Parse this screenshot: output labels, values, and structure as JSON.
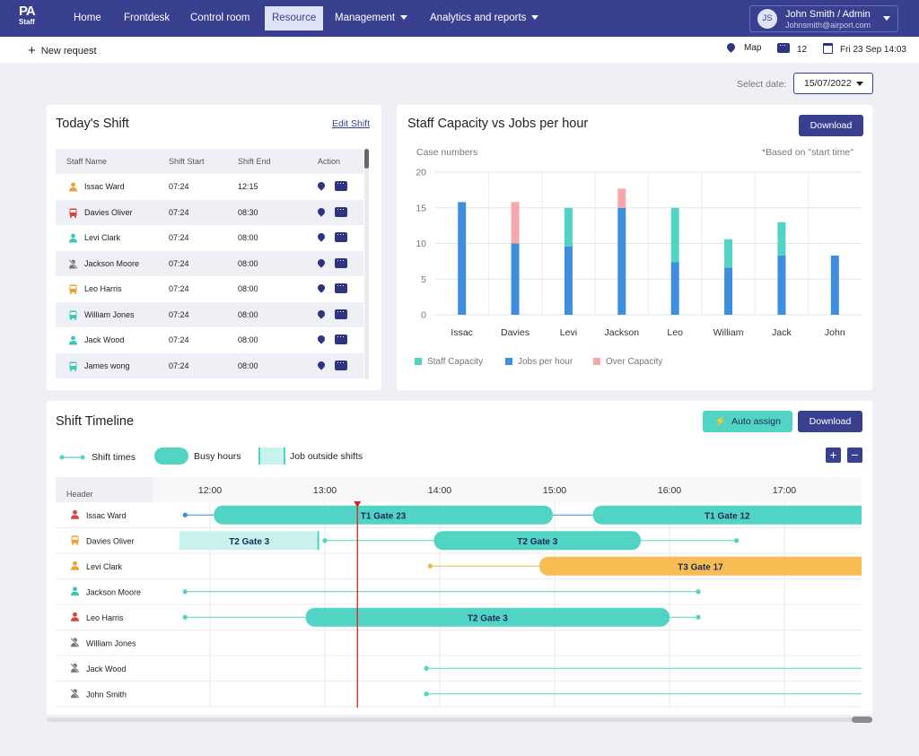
{
  "brand": {
    "line1": "PA",
    "line2": "Staff"
  },
  "nav": {
    "items": [
      {
        "label": "Home"
      },
      {
        "label": "Frontdesk"
      },
      {
        "label": "Control room"
      },
      {
        "label": "Resource",
        "active": true
      },
      {
        "label": "Management",
        "dropdown": true
      },
      {
        "label": "Analytics and reports",
        "dropdown": true
      }
    ]
  },
  "user": {
    "initials": "JS",
    "name": "John Smith / Admin",
    "email": "Johnsmith@airport.com"
  },
  "subbar": {
    "new_request": "New request",
    "map": "Map",
    "messages": "12",
    "datetime": "Fri 23 Sep 14:03"
  },
  "date_selector": {
    "label": "Select date:",
    "value": "15/07/2022"
  },
  "shift_card": {
    "title": "Today's Shift",
    "edit_link": "Edit Shift",
    "columns": [
      "Staff Name",
      "Shift Start",
      "Shift End",
      "Action"
    ],
    "rows": [
      {
        "name": "Issac Ward",
        "start": "07:24",
        "end": "12:15",
        "icon": "person-icon",
        "color": "#f0a030"
      },
      {
        "name": "Davies Oliver",
        "start": "07:24",
        "end": "08:30",
        "icon": "bus-icon",
        "color": "#e0413a"
      },
      {
        "name": "Levi Clark",
        "start": "07:24",
        "end": "08:00",
        "icon": "person-icon",
        "color": "#3cc7b7"
      },
      {
        "name": "Jackson Moore",
        "start": "07:24",
        "end": "08:00",
        "icon": "person-off-icon",
        "color": "#777777"
      },
      {
        "name": "Leo Harris",
        "start": "07:24",
        "end": "08:00",
        "icon": "bus-icon",
        "color": "#f0a030"
      },
      {
        "name": "William Jones",
        "start": "07:24",
        "end": "08:00",
        "icon": "bus-icon",
        "color": "#3cc7b7"
      },
      {
        "name": "Jack Wood",
        "start": "07:24",
        "end": "08:00",
        "icon": "person-icon",
        "color": "#3cc7b7"
      },
      {
        "name": "James wong",
        "start": "07:24",
        "end": "08:00",
        "icon": "bus-icon",
        "color": "#3cc7b7"
      }
    ]
  },
  "capacity_card": {
    "title": "Staff Capacity vs Jobs per hour",
    "download": "Download",
    "note": "*Based on \"start time\""
  },
  "chart_data": {
    "type": "bar",
    "title": "Staff Capacity vs Jobs per hour",
    "ylabel": "Case numbers",
    "categories": [
      "Issac",
      "Davies",
      "Levi",
      "Jackson",
      "Leo",
      "William",
      "Jack",
      "John"
    ],
    "series": [
      {
        "name": "Staff Capacity",
        "color": "#52d4c4",
        "values": [
          0,
          0,
          5.4,
          0,
          7.6,
          4,
          4.7,
          0
        ]
      },
      {
        "name": "Jobs per hour",
        "color": "#3e8ee0",
        "values": [
          15.8,
          10,
          9.6,
          15,
          7.4,
          6.6,
          8.3,
          8.3
        ]
      },
      {
        "name": "Over Capacity",
        "color": "#f5a9ab",
        "values": [
          0,
          5.8,
          0,
          2.7,
          0,
          0,
          0,
          0
        ]
      }
    ],
    "yticks": [
      0,
      5,
      10,
      15,
      20
    ],
    "ylim": [
      0,
      20
    ],
    "grid": true,
    "legend": "bottom"
  },
  "timeline_card": {
    "title": "Shift Timeline",
    "auto_assign": "Auto assign",
    "download": "Download",
    "legend": {
      "shift_times": "Shift times",
      "busy_hours": "Busy hours",
      "outside": "Job outside shifts"
    },
    "zoom_in": "+",
    "zoom_out": "−",
    "header_label": "Header",
    "hours": [
      "12:00",
      "13:00",
      "14:00",
      "15:00",
      "16:00",
      "17:00"
    ],
    "now": "13:17",
    "rows": [
      {
        "name": "Issac Ward",
        "icon": "person-icon",
        "color": "#e0413a",
        "line_color": "#3e8ee0",
        "line": [
          "11:47",
          "17:45"
        ],
        "jobs": [
          {
            "label": "T1 Gate 23",
            "from": "12:02",
            "to": "14:59",
            "type": "busy"
          },
          {
            "label": "T1 Gate 12",
            "from": "15:20",
            "to": "17:45",
            "type": "busy"
          }
        ]
      },
      {
        "name": "Davies Oliver",
        "icon": "bus-icon",
        "color": "#f0a030",
        "line_color": "#52d4c4",
        "line": [
          "13:00",
          "16:35"
        ],
        "jobs": [
          {
            "label": "T2 Gate 3",
            "from": "11:44",
            "to": "12:57",
            "type": "outside"
          },
          {
            "label": "T2 Gate 3",
            "from": "13:57",
            "to": "15:45",
            "type": "busy"
          }
        ]
      },
      {
        "name": "Levi Clark",
        "icon": "person-icon",
        "color": "#f0a030",
        "line_color": "#f0b840",
        "line": [
          "13:55",
          "17:45"
        ],
        "jobs": [
          {
            "label": "T3 Gate 17",
            "from": "14:52",
            "to": "17:45",
            "type": "busy-orange"
          }
        ]
      },
      {
        "name": "Jackson Moore",
        "icon": "person-icon",
        "color": "#3cc7b7",
        "line_color": "#52d4c4",
        "line": [
          "11:47",
          "16:15"
        ],
        "jobs": []
      },
      {
        "name": "Leo Harris",
        "icon": "person-icon",
        "color": "#e0413a",
        "line_color": "#52d4c4",
        "line": [
          "11:47",
          "16:15"
        ],
        "jobs": [
          {
            "label": "T2 Gate 3",
            "from": "12:50",
            "to": "16:00",
            "type": "busy"
          }
        ]
      },
      {
        "name": "William Jones",
        "icon": "person-off-icon",
        "color": "#777777",
        "line_color": "#52d4c4",
        "line": null,
        "jobs": []
      },
      {
        "name": "Jack Wood",
        "icon": "person-off-icon",
        "color": "#777777",
        "line_color": "#52d4c4",
        "line": [
          "13:53",
          "17:45"
        ],
        "jobs": []
      },
      {
        "name": "John Smith",
        "icon": "person-off-icon",
        "color": "#777777",
        "line_color": "#52d4c4",
        "line": [
          "13:53",
          "17:45"
        ],
        "jobs": []
      }
    ]
  }
}
